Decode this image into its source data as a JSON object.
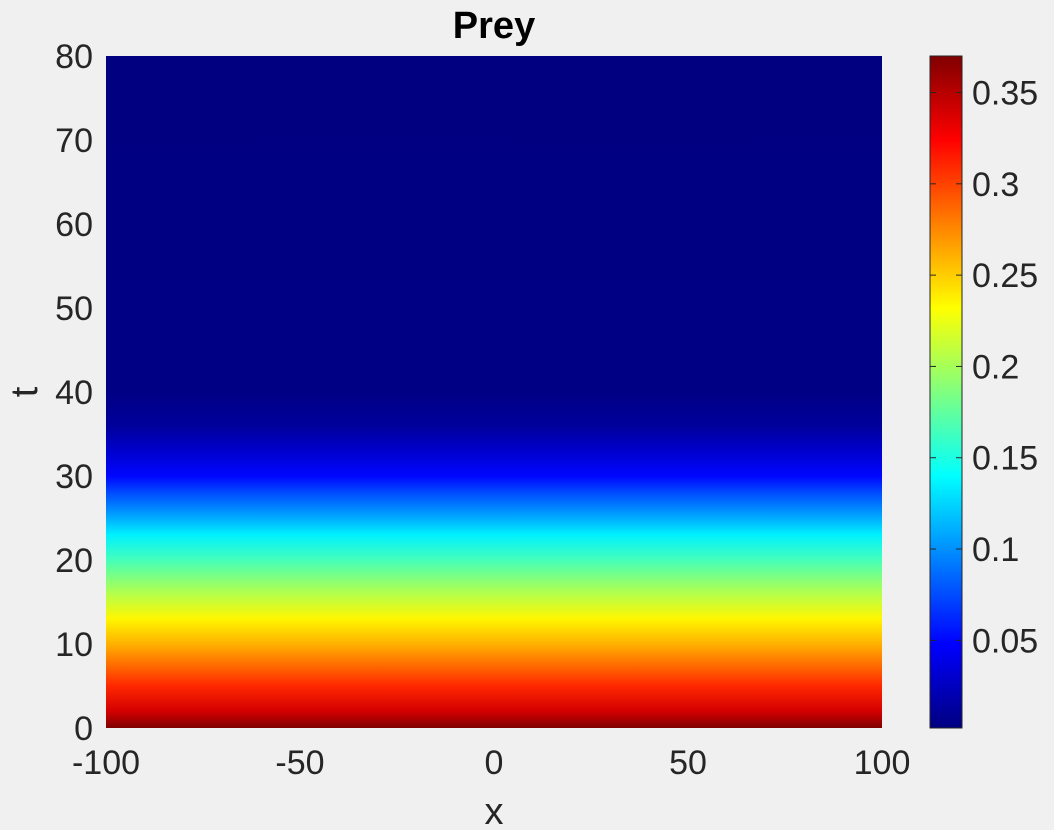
{
  "chart_data": {
    "type": "heatmap",
    "title": "Prey",
    "xlabel": "x",
    "ylabel": "t",
    "xlim": [
      -100,
      100
    ],
    "ylim": [
      0,
      80
    ],
    "x_ticks": [
      "-100",
      "-50",
      "0",
      "50",
      "100"
    ],
    "y_ticks": [
      "0",
      "10",
      "20",
      "30",
      "40",
      "50",
      "60",
      "70",
      "80"
    ],
    "colormap": "jet",
    "clim": [
      0.002,
      0.37
    ],
    "colorbar_ticks": [
      "0.05",
      "0.1",
      "0.15",
      "0.2",
      "0.25",
      "0.3",
      "0.35"
    ],
    "grid": false,
    "t_profile": {
      "t": [
        0,
        2,
        5,
        8,
        10,
        13,
        16,
        20,
        23,
        25,
        28,
        30,
        33,
        36,
        40,
        80
      ],
      "value": [
        0.37,
        0.34,
        0.31,
        0.28,
        0.26,
        0.235,
        0.205,
        0.165,
        0.135,
        0.11,
        0.075,
        0.05,
        0.03,
        0.012,
        0.004,
        0.002
      ]
    }
  }
}
